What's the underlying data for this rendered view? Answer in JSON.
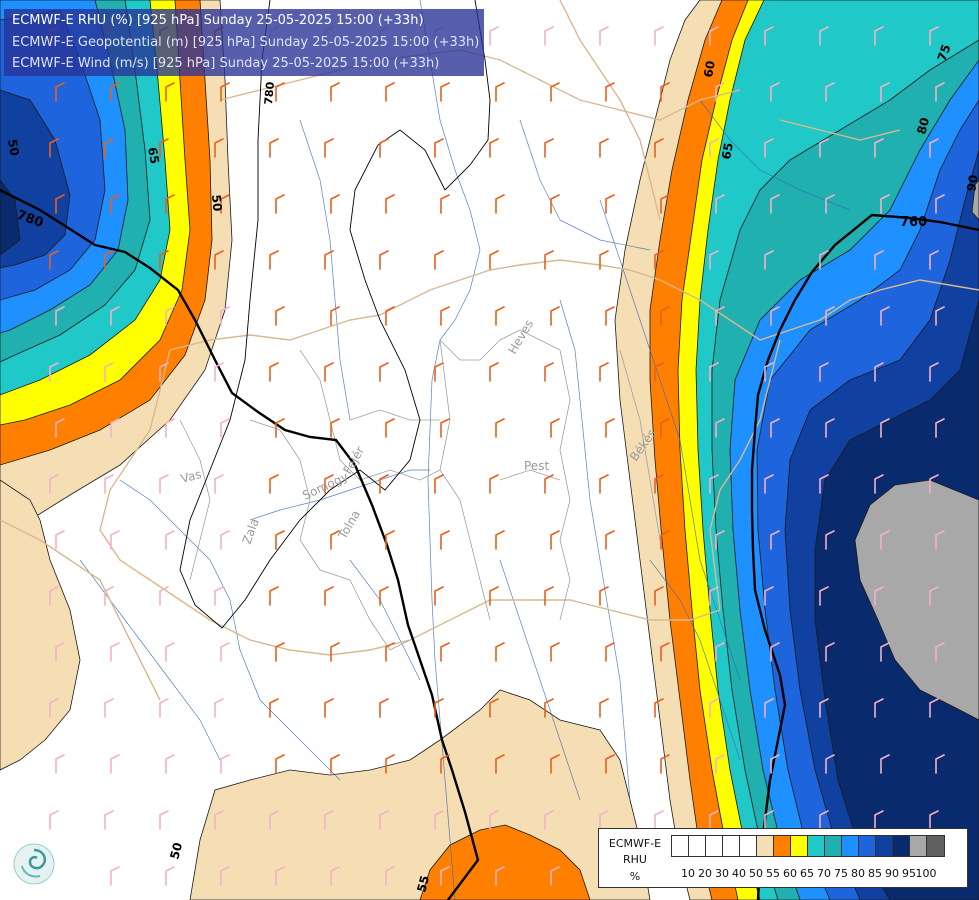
{
  "titles": {
    "line1": "ECMWF-E RHU (%) [925 hPa] Sunday 25-05-2025 15:00 (+33h)",
    "line2": "ECMWF-E Geopotential (m) [925 hPa] Sunday 25-05-2025 15:00 (+33h)",
    "line3": "ECMWF-E Wind (m/s) [925 hPa] Sunday 25-05-2025 15:00 (+33h)"
  },
  "map_labels": {
    "geopotential_left": "780",
    "geopotential_right": "760",
    "geopotential_top": "780",
    "rhu_65_left": "65",
    "rhu_50_left": "50",
    "rhu_60_right": "60",
    "rhu_65_right": "65",
    "rhu_75_right": "75",
    "rhu_80_right": "80",
    "rhu_90_right": "90",
    "rhu_50_bottom": "50",
    "rhu_55_bottom": "55",
    "rhu_50_topleft": "50",
    "county_vas": "Vas",
    "county_zala": "Zala",
    "county_somogy": "Somogy",
    "county_tolna": "Tolna",
    "county_fejer": "Fejér",
    "county_heves": "Heves",
    "county_pest": "Pest",
    "county_bekes": "Békés"
  },
  "legend": {
    "title_line1": "ECMWF-E",
    "title_line2": "RHU",
    "unit": "%",
    "ticks": [
      "10",
      "20",
      "30",
      "40",
      "50",
      "55",
      "60",
      "65",
      "70",
      "75",
      "80",
      "85",
      "90",
      "95",
      "100"
    ],
    "colors": [
      "#ffffff",
      "#ffffff",
      "#ffffff",
      "#ffffff",
      "#ffffff",
      "#f5deb3",
      "#ff8000",
      "#ffff00",
      "#20c8c8",
      "#20b0b0",
      "#1e90ff",
      "#1e64dc",
      "#1040a0",
      "#0a2a6e",
      "#a8a8a8",
      "#606060"
    ]
  },
  "colors": {
    "rhu_50": "#f5deb3",
    "rhu_55": "#ff8000",
    "rhu_60": "#ffff00",
    "rhu_65": "#20c8c8",
    "rhu_70": "#20b0b0",
    "rhu_75": "#1e90ff",
    "rhu_80": "#1e64dc",
    "rhu_85": "#1040a0",
    "rhu_90": "#0a2a6e",
    "rhu_95": "#a8a8a8",
    "wind_moderate": "#e8601c",
    "wind_light": "#f4b0c8",
    "wind_strong": "#c00000"
  },
  "logo_icon": "ecmwf-swirl-logo-icon"
}
